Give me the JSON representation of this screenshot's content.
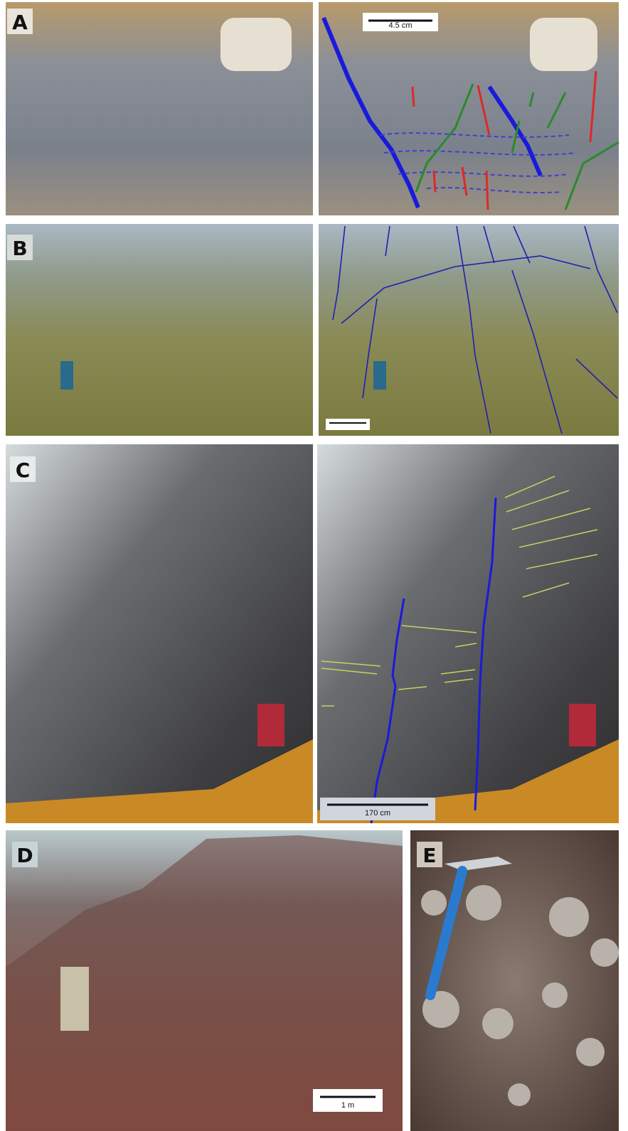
{
  "panels": [
    {
      "label": "A",
      "scale_bar": "4.5 cm"
    },
    {
      "label": "B"
    },
    {
      "label": "C",
      "scale_bar": "170 cm"
    },
    {
      "label": "D",
      "scale_bar": "1 m"
    },
    {
      "label": "E"
    }
  ]
}
